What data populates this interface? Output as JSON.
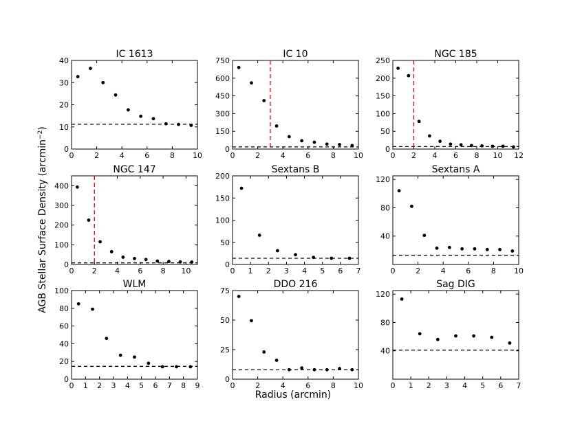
{
  "figure": {
    "ylabel": "AGB Stellar Surface Density (arcmin",
    "ylabel_sup": "−2",
    "ylabel_close": ")",
    "xlabel": "Radius (arcmin)"
  },
  "chart_data": [
    {
      "type": "scatter",
      "title": "IC 1613",
      "xlim": [
        0,
        10
      ],
      "xticks": [
        0,
        2,
        4,
        6,
        8,
        10
      ],
      "ylim": [
        0,
        40
      ],
      "yticks": [
        0,
        10,
        20,
        30,
        40
      ],
      "x": [
        0.5,
        1.5,
        2.5,
        3.5,
        4.5,
        5.5,
        6.5,
        7.5,
        8.5,
        9.5
      ],
      "y": [
        32.7,
        36.4,
        30.0,
        24.4,
        17.7,
        14.8,
        13.7,
        11.4,
        11.1,
        10.7
      ],
      "background": 11.2,
      "cutoff": null
    },
    {
      "type": "scatter",
      "title": "IC 10",
      "xlim": [
        0,
        10
      ],
      "xticks": [
        0,
        2,
        4,
        6,
        8,
        10
      ],
      "ylim": [
        0,
        750
      ],
      "yticks": [
        0,
        150,
        300,
        450,
        600,
        750
      ],
      "x": [
        0.5,
        1.5,
        2.5,
        3.5,
        4.5,
        5.5,
        6.5,
        7.5,
        8.5,
        9.5
      ],
      "y": [
        690,
        560,
        410,
        195,
        105,
        70,
        58,
        42,
        38,
        30
      ],
      "background": 18,
      "cutoff": 3
    },
    {
      "type": "scatter",
      "title": "NGC 185",
      "xlim": [
        0,
        12
      ],
      "xticks": [
        0,
        2,
        4,
        6,
        8,
        10,
        12
      ],
      "ylim": [
        0,
        250
      ],
      "yticks": [
        0,
        50,
        100,
        150,
        200,
        250
      ],
      "x": [
        0.5,
        1.5,
        2.5,
        3.5,
        4.5,
        5.5,
        6.5,
        7.5,
        8.5,
        9.5,
        10.5,
        11.5
      ],
      "y": [
        228,
        207,
        78,
        37,
        22,
        14,
        12,
        10,
        9,
        8,
        8,
        6
      ],
      "background": 7,
      "cutoff": 2
    },
    {
      "type": "scatter",
      "title": "NGC 147",
      "xlim": [
        0,
        11
      ],
      "xticks": [
        0,
        2,
        4,
        6,
        8,
        10
      ],
      "ylim": [
        0,
        450
      ],
      "yticks": [
        0,
        100,
        200,
        300,
        400
      ],
      "x": [
        0.5,
        1.5,
        2.5,
        3.5,
        4.5,
        5.5,
        6.5,
        7.5,
        8.5,
        9.5,
        10.5
      ],
      "y": [
        393,
        225,
        115,
        65,
        37,
        30,
        25,
        17,
        15,
        13,
        12
      ],
      "background": 8,
      "cutoff": 2
    },
    {
      "type": "scatter",
      "title": "Sextans B",
      "xlim": [
        0,
        7
      ],
      "xticks": [
        0,
        1,
        2,
        3,
        4,
        5,
        6,
        7
      ],
      "ylim": [
        0,
        200
      ],
      "yticks": [
        0,
        50,
        100,
        150,
        200
      ],
      "x": [
        0.5,
        1.5,
        2.5,
        3.5,
        4.5,
        5.5,
        6.5
      ],
      "y": [
        172,
        66,
        31,
        22,
        16,
        14,
        14
      ],
      "background": 14,
      "cutoff": null
    },
    {
      "type": "scatter",
      "title": "Sextans A",
      "xlim": [
        0,
        10
      ],
      "xticks": [
        0,
        2,
        4,
        6,
        8,
        10
      ],
      "ylim": [
        0,
        125
      ],
      "yticks": [
        40,
        80,
        120
      ],
      "x": [
        0.5,
        1.5,
        2.5,
        3.5,
        4.5,
        5.5,
        6.5,
        7.5,
        8.5,
        9.5
      ],
      "y": [
        104,
        82,
        41,
        23,
        24,
        22,
        22,
        21,
        21,
        19
      ],
      "background": 13,
      "cutoff": null
    },
    {
      "type": "scatter",
      "title": "WLM",
      "xlim": [
        0,
        9
      ],
      "xticks": [
        0,
        1,
        2,
        3,
        4,
        5,
        6,
        7,
        8,
        9
      ],
      "ylim": [
        0,
        100
      ],
      "yticks": [
        0,
        20,
        40,
        60,
        80,
        100
      ],
      "x": [
        0.5,
        1.5,
        2.5,
        3.5,
        4.5,
        5.5,
        6.5,
        7.5,
        8.5
      ],
      "y": [
        85,
        79,
        46,
        27,
        25,
        18,
        14,
        14,
        14
      ],
      "background": 14.5,
      "cutoff": null
    },
    {
      "type": "scatter",
      "title": "DDO 216",
      "xlim": [
        0,
        10
      ],
      "xticks": [
        0,
        2,
        4,
        6,
        8,
        10
      ],
      "ylim": [
        0,
        75
      ],
      "yticks": [
        0,
        25,
        50,
        75
      ],
      "x": [
        0.5,
        1.5,
        2.5,
        3.5,
        4.5,
        5.5,
        6.5,
        7.5,
        8.5,
        9.5
      ],
      "y": [
        70,
        49.5,
        23,
        16,
        8,
        9.5,
        8,
        8,
        9,
        8
      ],
      "background": 8,
      "cutoff": null
    },
    {
      "type": "scatter",
      "title": "Sag DIG",
      "xlim": [
        0,
        7
      ],
      "xticks": [
        0,
        1,
        2,
        3,
        4,
        5,
        6,
        7
      ],
      "ylim": [
        0,
        125
      ],
      "yticks": [
        40,
        80,
        120
      ],
      "x": [
        0.5,
        1.5,
        2.5,
        3.5,
        4.5,
        5.5,
        6.5
      ],
      "y": [
        113,
        64,
        56,
        61,
        61,
        59,
        51
      ],
      "background": 41,
      "cutoff": null
    }
  ]
}
